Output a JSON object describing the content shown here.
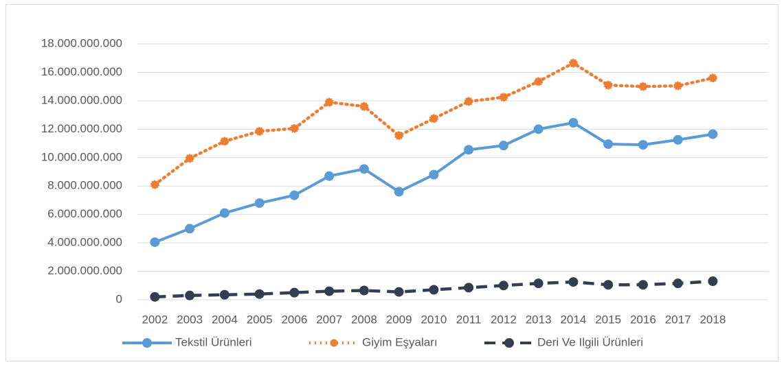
{
  "chart_data": {
    "type": "line",
    "categories": [
      "2002",
      "2003",
      "2004",
      "2005",
      "2006",
      "2007",
      "2008",
      "2009",
      "2010",
      "2011",
      "2012",
      "2013",
      "2014",
      "2015",
      "2016",
      "2017",
      "2018"
    ],
    "series": [
      {
        "name": "Tekstil Ürünleri",
        "color": "#5b9bd5",
        "style": "solid",
        "values": [
          4050000000,
          5000000000,
          6100000000,
          6800000000,
          7350000000,
          8700000000,
          9200000000,
          7600000000,
          8800000000,
          10550000000,
          10850000000,
          12000000000,
          12450000000,
          10950000000,
          10900000000,
          11250000000,
          11650000000
        ]
      },
      {
        "name": "Giyim Eşyaları",
        "color": "#ed7d31",
        "style": "dotted",
        "values": [
          8100000000,
          9950000000,
          11150000000,
          11850000000,
          12050000000,
          13900000000,
          13600000000,
          11550000000,
          12750000000,
          13950000000,
          14250000000,
          15350000000,
          16650000000,
          15100000000,
          15000000000,
          15050000000,
          15600000000
        ]
      },
      {
        "name": "Deri Ve Ilgili Ürünleri",
        "color": "#333f50",
        "style": "dashed",
        "values": [
          200000000,
          300000000,
          350000000,
          400000000,
          500000000,
          600000000,
          650000000,
          550000000,
          700000000,
          850000000,
          1000000000,
          1150000000,
          1250000000,
          1050000000,
          1050000000,
          1150000000,
          1300000000
        ]
      }
    ],
    "ylim": [
      0,
      18000000000
    ],
    "yticks": [
      0,
      {
        "value": 2000000000,
        "label": "2.000.000.000"
      },
      {
        "value": 4000000000,
        "label": "4.000.000.000"
      },
      {
        "value": 6000000000,
        "label": "6.000.000.000"
      },
      {
        "value": 8000000000,
        "label": "8.000.000.000"
      },
      {
        "value": 10000000000,
        "label": "10.000.000.000"
      },
      {
        "value": 12000000000,
        "label": "12.000.000.000"
      },
      {
        "value": 14000000000,
        "label": "14.000.000.000"
      },
      {
        "value": 16000000000,
        "label": "16.000.000.000"
      },
      {
        "value": 18000000000,
        "label": "18.000.000.000"
      }
    ],
    "grid": true,
    "legend": "bottom"
  }
}
